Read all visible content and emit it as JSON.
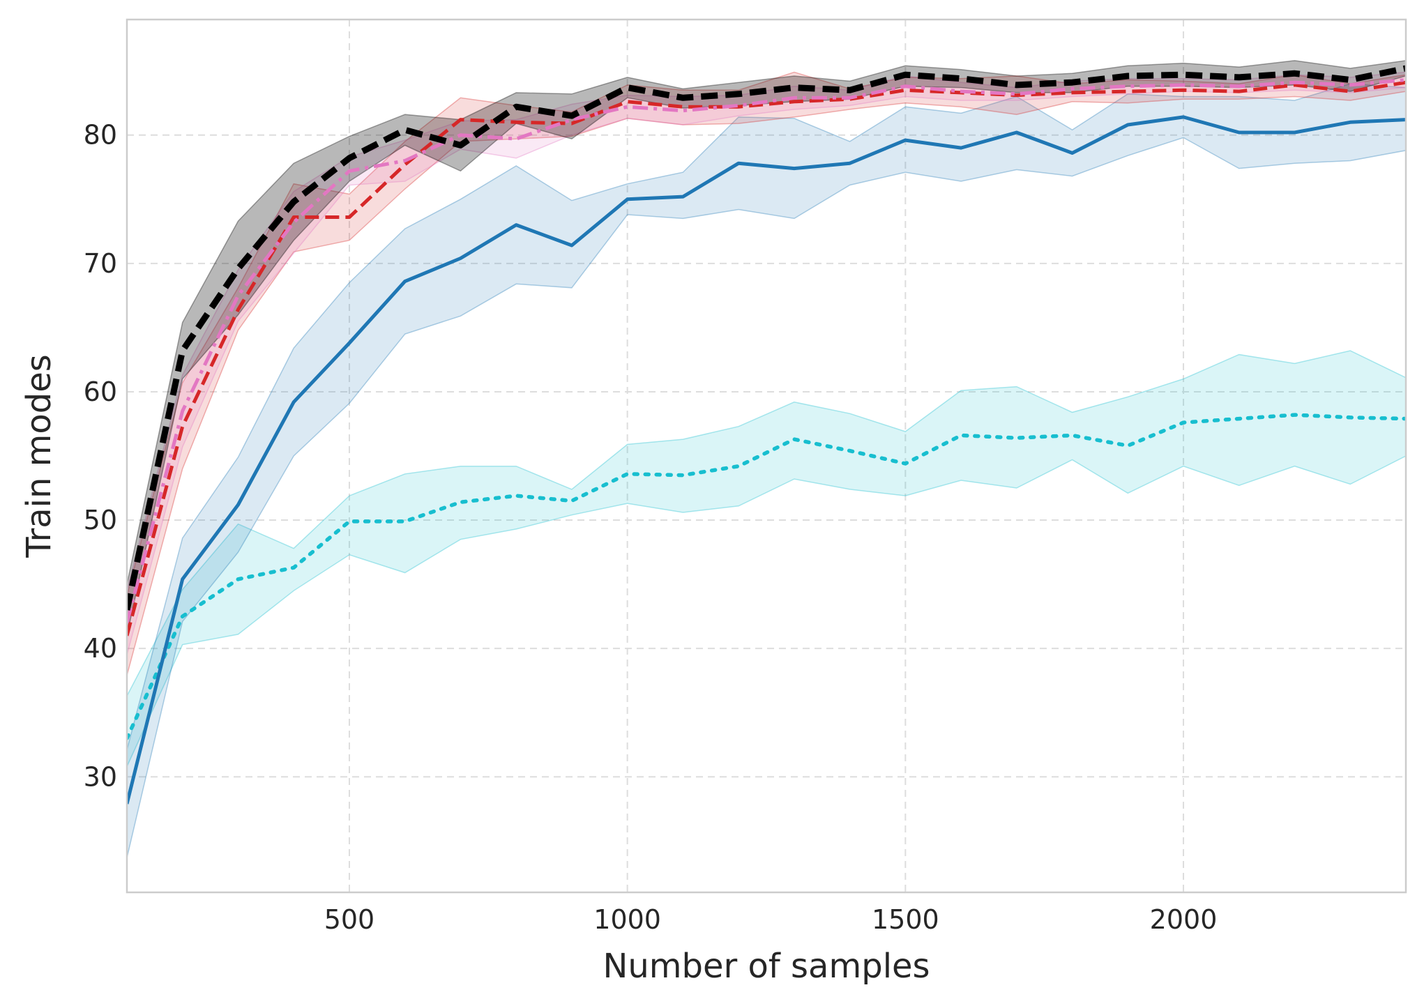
{
  "chart_data": {
    "type": "line",
    "title": "",
    "xlabel": "Number of samples",
    "ylabel": "Train modes",
    "xlim": [
      100,
      2400
    ],
    "ylim": [
      21,
      89
    ],
    "xticks": [
      500,
      1000,
      1500,
      2000
    ],
    "yticks": [
      30,
      40,
      50,
      60,
      70,
      80
    ],
    "grid": true,
    "x": [
      100,
      200,
      300,
      400,
      500,
      600,
      700,
      800,
      900,
      1000,
      1100,
      1200,
      1300,
      1400,
      1500,
      1600,
      1700,
      1800,
      1900,
      2000,
      2100,
      2200,
      2300,
      2400
    ],
    "series": [
      {
        "name": "cyan dotted",
        "color": "#17becf",
        "style": "dotted",
        "values": [
          33.0,
          42.5,
          45.4,
          46.3,
          49.9,
          49.9,
          51.4,
          51.9,
          51.5,
          53.6,
          53.5,
          54.2,
          56.3,
          55.4,
          54.4,
          56.6,
          56.4,
          56.6,
          55.8,
          57.6,
          57.9,
          58.2,
          58.0,
          57.9
        ],
        "lower": [
          30.8,
          40.3,
          41.1,
          44.5,
          47.3,
          45.9,
          48.5,
          49.3,
          50.4,
          51.3,
          50.6,
          51.1,
          53.2,
          52.4,
          51.9,
          53.1,
          52.5,
          54.7,
          52.1,
          54.2,
          52.7,
          54.2,
          52.8,
          55.0
        ],
        "upper": [
          36.3,
          44.6,
          49.7,
          47.8,
          51.9,
          53.6,
          54.2,
          54.2,
          52.4,
          55.9,
          56.3,
          57.3,
          59.2,
          58.3,
          56.9,
          60.1,
          60.4,
          58.4,
          59.6,
          61.0,
          62.9,
          62.2,
          63.2,
          61.1
        ]
      },
      {
        "name": "blue solid",
        "color": "#1f77b4",
        "style": "solid",
        "values": [
          27.9,
          45.4,
          51.2,
          59.2,
          63.8,
          68.6,
          70.4,
          73.0,
          71.4,
          75.0,
          75.2,
          77.8,
          77.4,
          77.8,
          79.6,
          79.0,
          80.2,
          78.6,
          80.8,
          81.4,
          80.2,
          80.2,
          81.0,
          81.2
        ],
        "lower": [
          23.7,
          42.1,
          47.5,
          55.0,
          59.1,
          64.5,
          65.9,
          68.4,
          68.1,
          73.8,
          73.5,
          74.2,
          73.5,
          76.1,
          77.1,
          76.4,
          77.3,
          76.8,
          78.4,
          79.8,
          77.4,
          77.8,
          78.0,
          78.8
        ],
        "upper": [
          32.1,
          48.6,
          54.9,
          63.4,
          68.5,
          72.7,
          75.0,
          77.6,
          74.9,
          76.2,
          77.1,
          81.4,
          81.3,
          79.5,
          82.2,
          81.7,
          83.0,
          80.4,
          83.2,
          83.0,
          83.0,
          82.7,
          84.0,
          83.7
        ]
      },
      {
        "name": "red dashed",
        "color": "#d62728",
        "style": "dashed",
        "values": [
          41.0,
          57.3,
          66.4,
          73.6,
          73.6,
          77.7,
          81.2,
          81.0,
          80.9,
          82.6,
          82.2,
          82.2,
          82.6,
          82.8,
          83.5,
          83.3,
          83.1,
          83.3,
          83.4,
          83.5,
          83.4,
          83.9,
          83.4,
          84.1
        ],
        "lower": [
          37.9,
          54.0,
          64.8,
          70.9,
          71.8,
          75.8,
          79.5,
          79.7,
          79.9,
          81.3,
          80.8,
          80.9,
          81.4,
          82.0,
          82.5,
          82.2,
          81.6,
          82.6,
          82.5,
          82.8,
          82.8,
          83.0,
          82.7,
          83.4
        ],
        "upper": [
          44.1,
          60.7,
          68.1,
          76.2,
          75.4,
          79.5,
          82.9,
          82.3,
          81.8,
          83.9,
          83.5,
          83.5,
          84.9,
          83.6,
          84.5,
          84.4,
          84.6,
          84.0,
          84.3,
          84.2,
          84.0,
          84.7,
          84.0,
          84.7
        ]
      },
      {
        "name": "pink dash-dot",
        "color": "#e377c2",
        "style": "dashdot",
        "values": [
          42.0,
          58.5,
          67.5,
          73.2,
          77.2,
          78.0,
          80.0,
          79.7,
          81.2,
          82.2,
          81.9,
          82.3,
          82.9,
          82.9,
          83.8,
          83.4,
          83.2,
          83.6,
          83.8,
          83.9,
          83.8,
          84.1,
          83.9,
          84.3
        ],
        "lower": [
          39.5,
          55.7,
          65.5,
          70.8,
          76.1,
          76.4,
          78.9,
          78.2,
          80.0,
          81.3,
          80.8,
          81.5,
          82.0,
          82.3,
          83.0,
          82.7,
          82.7,
          83.0,
          83.2,
          83.4,
          83.3,
          83.5,
          83.3,
          83.7
        ],
        "upper": [
          44.5,
          61.3,
          69.5,
          75.6,
          78.3,
          79.6,
          81.1,
          81.2,
          82.4,
          83.1,
          83.0,
          83.1,
          83.8,
          83.5,
          84.6,
          84.1,
          83.7,
          84.2,
          84.4,
          84.4,
          84.3,
          84.7,
          84.5,
          84.9
        ]
      },
      {
        "name": "black dashed",
        "color": "#000000",
        "style": "dashed-bold",
        "values": [
          43.0,
          63.2,
          69.6,
          74.8,
          78.2,
          80.4,
          79.2,
          82.2,
          81.5,
          83.7,
          82.9,
          83.2,
          83.7,
          83.5,
          84.7,
          84.4,
          83.9,
          84.1,
          84.6,
          84.7,
          84.5,
          84.8,
          84.3,
          85.2
        ],
        "lower": [
          41.0,
          61.0,
          66.0,
          71.8,
          76.4,
          79.2,
          77.2,
          80.9,
          79.7,
          82.9,
          82.1,
          82.3,
          82.6,
          82.8,
          83.8,
          83.7,
          83.3,
          83.3,
          83.8,
          83.8,
          83.7,
          83.9,
          83.4,
          84.6
        ],
        "upper": [
          45.0,
          65.4,
          73.3,
          77.8,
          79.9,
          81.6,
          81.2,
          83.3,
          83.2,
          84.5,
          83.6,
          84.1,
          84.6,
          84.2,
          85.4,
          85.1,
          84.6,
          84.8,
          85.4,
          85.6,
          85.3,
          85.8,
          85.2,
          85.8
        ]
      }
    ]
  }
}
